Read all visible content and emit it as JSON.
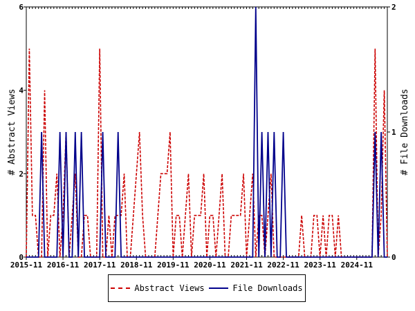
{
  "chart_data": {
    "type": "line",
    "xlabel": "",
    "y_left_label": "# Abstract Views",
    "y_right_label": "# File Downloads",
    "y_left_range": [
      0,
      6
    ],
    "y_right_range": [
      0,
      2
    ],
    "y_left_ticks": [
      "0",
      "2",
      "4",
      "6"
    ],
    "y_right_ticks": [
      "0",
      "1",
      "2"
    ],
    "x_tick_labels": [
      "2015-11",
      "2016-11",
      "2017-11",
      "2018-11",
      "2019-11",
      "2020-11",
      "2021-11",
      "2022-11",
      "2023-11",
      "2024-11"
    ],
    "x_start_month": "2015-11",
    "legend_position": "bottom",
    "series": [
      {
        "name": "Abstract Views",
        "axis": "left",
        "color": "#cc0000",
        "style": "dashed",
        "values": [
          0,
          5,
          1,
          1,
          0,
          0,
          4,
          0,
          1,
          1,
          2,
          0,
          1,
          3,
          0,
          1,
          2,
          0,
          0,
          1,
          1,
          0,
          0,
          0,
          5,
          0,
          0,
          1,
          0,
          1,
          1,
          1,
          2,
          0,
          0,
          1,
          2,
          3,
          1,
          0,
          0,
          0,
          0,
          1,
          2,
          2,
          2,
          3,
          0,
          1,
          1,
          0,
          1,
          2,
          0,
          1,
          1,
          1,
          2,
          0,
          1,
          1,
          0,
          1,
          2,
          0,
          0,
          1,
          1,
          1,
          1,
          2,
          0,
          1,
          2,
          0,
          1,
          1,
          0,
          1,
          2,
          0,
          0,
          0,
          0,
          0,
          0,
          0,
          0,
          0,
          1,
          0,
          0,
          0,
          1,
          1,
          0,
          1,
          0,
          1,
          1,
          0,
          1,
          0,
          0,
          0,
          0,
          0,
          0,
          0,
          0,
          0,
          0,
          0,
          5,
          0,
          1,
          4,
          0
        ]
      },
      {
        "name": "File Downloads",
        "axis": "right",
        "color": "#00008b",
        "style": "solid",
        "values": [
          0,
          0,
          0,
          0,
          0,
          1,
          0,
          0,
          0,
          0,
          0,
          1,
          0,
          1,
          0,
          0,
          1,
          0,
          1,
          0,
          0,
          0,
          0,
          0,
          0,
          1,
          0,
          0,
          0,
          0,
          1,
          0,
          0,
          0,
          0,
          0,
          0,
          0,
          0,
          0,
          0,
          0,
          0,
          0,
          0,
          0,
          0,
          0,
          0,
          0,
          0,
          0,
          0,
          0,
          0,
          0,
          0,
          0,
          0,
          0,
          0,
          0,
          0,
          0,
          0,
          0,
          0,
          0,
          0,
          0,
          0,
          0,
          0,
          0,
          0,
          2,
          0,
          1,
          0,
          1,
          0,
          1,
          0,
          0,
          1,
          0,
          0,
          0,
          0,
          0,
          0,
          0,
          0,
          0,
          0,
          0,
          0,
          0,
          0,
          0,
          0,
          0,
          0,
          0,
          0,
          0,
          0,
          0,
          0,
          0,
          0,
          0,
          0,
          0,
          1,
          0,
          1,
          0,
          0
        ]
      }
    ]
  }
}
